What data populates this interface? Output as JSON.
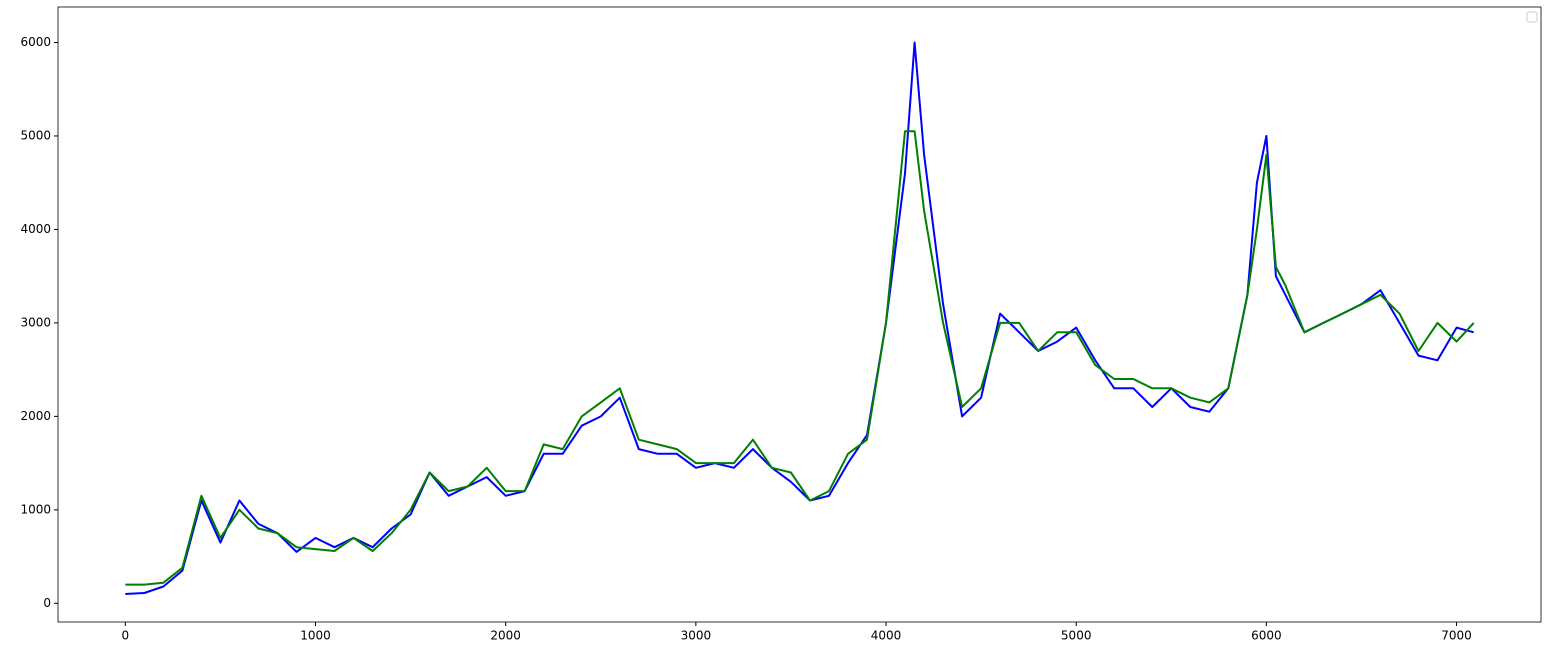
{
  "chart_data": {
    "type": "line",
    "x": [
      0,
      100,
      200,
      300,
      400,
      500,
      600,
      700,
      800,
      900,
      1000,
      1100,
      1200,
      1300,
      1400,
      1500,
      1600,
      1700,
      1800,
      1900,
      2000,
      2100,
      2200,
      2300,
      2400,
      2500,
      2600,
      2700,
      2800,
      2900,
      3000,
      3100,
      3200,
      3300,
      3400,
      3500,
      3600,
      3700,
      3800,
      3900,
      4000,
      4100,
      4150,
      4200,
      4300,
      4400,
      4500,
      4600,
      4700,
      4800,
      4900,
      5000,
      5100,
      5200,
      5300,
      5400,
      5500,
      5600,
      5700,
      5800,
      5900,
      5950,
      6000,
      6050,
      6100,
      6200,
      6300,
      6400,
      6500,
      6600,
      6700,
      6800,
      6900,
      7000,
      7090
    ],
    "series": [
      {
        "color": "#0000ff",
        "values": [
          100,
          110,
          180,
          350,
          1100,
          650,
          1100,
          850,
          750,
          550,
          700,
          600,
          700,
          600,
          800,
          950,
          1400,
          1150,
          1250,
          1350,
          1150,
          1200,
          1600,
          1600,
          1900,
          2000,
          2200,
          1650,
          1600,
          1600,
          1450,
          1500,
          1450,
          1650,
          1450,
          1300,
          1100,
          1150,
          1500,
          1800,
          3000,
          4600,
          6000,
          4800,
          3200,
          2000,
          2200,
          3100,
          2900,
          2700,
          2800,
          2950,
          2600,
          2300,
          2300,
          2100,
          2300,
          2100,
          2050,
          2300,
          3300,
          4500,
          5000,
          3500,
          3300,
          2900,
          3000,
          3100,
          3200,
          3350,
          3000,
          2650,
          2600,
          2950,
          2900
        ]
      },
      {
        "color": "#008000",
        "values": [
          200,
          200,
          220,
          380,
          1150,
          700,
          1000,
          800,
          750,
          600,
          580,
          560,
          700,
          560,
          750,
          1000,
          1400,
          1200,
          1250,
          1450,
          1200,
          1200,
          1700,
          1650,
          2000,
          2150,
          2300,
          1750,
          1700,
          1650,
          1500,
          1500,
          1500,
          1750,
          1450,
          1400,
          1100,
          1200,
          1600,
          1750,
          3000,
          5050,
          5050,
          4200,
          3000,
          2100,
          2300,
          3000,
          3000,
          2700,
          2900,
          2900,
          2550,
          2400,
          2400,
          2300,
          2300,
          2200,
          2150,
          2300,
          3300,
          4000,
          4800,
          3600,
          3400,
          2900,
          3000,
          3100,
          3200,
          3300,
          3100,
          2700,
          3000,
          2800,
          3000
        ]
      }
    ],
    "xlim": [
      -354,
      7444
    ],
    "ylim": [
      -200,
      6380
    ],
    "xticks": [
      0,
      1000,
      2000,
      3000,
      4000,
      5000,
      6000,
      7000
    ],
    "yticks": [
      0,
      1000,
      2000,
      3000,
      4000,
      5000,
      6000
    ],
    "grid": false,
    "legend": "upper right"
  }
}
